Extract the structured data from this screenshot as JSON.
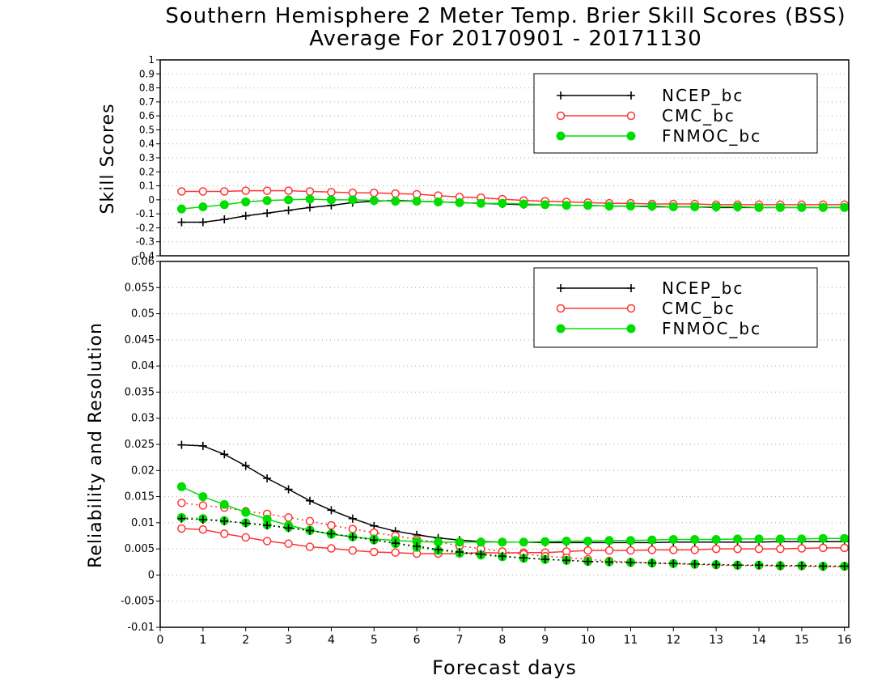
{
  "header": {
    "title_line1": "Southern Hemisphere 2 Meter Temp. Brier Skill Scores (BSS)",
    "title_line2": "Average For 20170901 - 20171130"
  },
  "chart_data": [
    {
      "type": "line",
      "title": "Southern Hemisphere 2 Meter Temp. Brier Skill Scores (BSS)",
      "subtitle": "Average For 20170901 - 20171130",
      "ylabel": "Skill Scores",
      "xlabel": "",
      "xlim": [
        0,
        16.1
      ],
      "ylim": [
        -0.4,
        1
      ],
      "yticks": [
        -0.4,
        -0.3,
        -0.2,
        -0.1,
        0,
        0.1,
        0.2,
        0.3,
        0.4,
        0.5,
        0.6,
        0.7,
        0.8,
        0.9,
        1
      ],
      "ytick_labels": [
        "-0.4",
        "-0.3",
        "-0.2",
        "-0.1",
        "0",
        "0.1",
        "0.2",
        "0.3",
        "0.4",
        "0.5",
        "0.6",
        "0.7",
        "0.8",
        "0.9",
        "1"
      ],
      "grid": true,
      "legend_position": "top-right",
      "legend": [
        "NCEP_bc",
        "CMC_bc",
        "FNMOC_bc"
      ],
      "x": [
        0.5,
        1,
        1.5,
        2,
        2.5,
        3,
        3.5,
        4,
        4.5,
        5,
        5.5,
        6,
        6.5,
        7,
        7.5,
        8,
        8.5,
        9,
        9.5,
        10,
        10.5,
        11,
        11.5,
        12,
        12.5,
        13,
        13.5,
        14,
        14.5,
        15,
        15.5,
        16
      ],
      "series": [
        {
          "name": "NCEP_bc",
          "color": "#000000",
          "marker": "plus",
          "style": "solid",
          "values": [
            -0.16,
            -0.16,
            -0.14,
            -0.115,
            -0.095,
            -0.075,
            -0.055,
            -0.04,
            -0.02,
            -0.01,
            -0.005,
            -0.01,
            -0.015,
            -0.02,
            -0.025,
            -0.03,
            -0.035,
            -0.035,
            -0.04,
            -0.04,
            -0.045,
            -0.045,
            -0.05,
            -0.05,
            -0.05,
            -0.055,
            -0.055,
            -0.055,
            -0.055,
            -0.055,
            -0.055,
            -0.055
          ]
        },
        {
          "name": "CMC_bc",
          "color": "#ff3333",
          "marker": "open-circle",
          "style": "solid",
          "values": [
            0.06,
            0.06,
            0.06,
            0.065,
            0.065,
            0.065,
            0.06,
            0.055,
            0.05,
            0.05,
            0.045,
            0.04,
            0.03,
            0.02,
            0.015,
            0.005,
            -0.005,
            -0.01,
            -0.015,
            -0.02,
            -0.025,
            -0.025,
            -0.03,
            -0.03,
            -0.03,
            -0.035,
            -0.035,
            -0.035,
            -0.035,
            -0.035,
            -0.035,
            -0.035
          ]
        },
        {
          "name": "FNMOC_bc",
          "color": "#00dd00",
          "marker": "filled-circle",
          "style": "solid",
          "values": [
            -0.065,
            -0.05,
            -0.035,
            -0.015,
            -0.005,
            0.0,
            0.005,
            0.0,
            0.0,
            -0.005,
            -0.01,
            -0.01,
            -0.015,
            -0.02,
            -0.025,
            -0.025,
            -0.03,
            -0.035,
            -0.04,
            -0.04,
            -0.045,
            -0.045,
            -0.045,
            -0.05,
            -0.05,
            -0.05,
            -0.05,
            -0.055,
            -0.055,
            -0.055,
            -0.055,
            -0.055
          ]
        }
      ]
    },
    {
      "type": "line",
      "title": "",
      "ylabel": "Reliability and Resolution",
      "xlabel": "Forecast days",
      "xlim": [
        0,
        16.1
      ],
      "ylim": [
        -0.01,
        0.06
      ],
      "xticks": [
        0,
        1,
        2,
        3,
        4,
        5,
        6,
        7,
        8,
        9,
        10,
        11,
        12,
        13,
        14,
        15,
        16
      ],
      "yticks": [
        -0.01,
        -0.005,
        0,
        0.005,
        0.01,
        0.015,
        0.02,
        0.025,
        0.03,
        0.035,
        0.04,
        0.045,
        0.05,
        0.055,
        0.06
      ],
      "ytick_labels": [
        "-0.01",
        "-0.005",
        "0",
        "0.005",
        "0.01",
        "0.015",
        "0.02",
        "0.025",
        "0.03",
        "0.035",
        "0.04",
        "0.045",
        "0.05",
        "0.055",
        "0.06"
      ],
      "grid": true,
      "legend_position": "top-right",
      "legend": [
        "NCEP_bc",
        "CMC_bc",
        "FNMOC_bc"
      ],
      "x": [
        0.5,
        1,
        1.5,
        2,
        2.5,
        3,
        3.5,
        4,
        4.5,
        5,
        5.5,
        6,
        6.5,
        7,
        7.5,
        8,
        8.5,
        9,
        9.5,
        10,
        10.5,
        11,
        11.5,
        12,
        12.5,
        13,
        13.5,
        14,
        14.5,
        15,
        15.5,
        16
      ],
      "series": [
        {
          "name": "NCEP_bc",
          "color": "#000000",
          "marker": "plus",
          "style": "solid",
          "values": [
            0.0249,
            0.0247,
            0.0231,
            0.0209,
            0.0185,
            0.0164,
            0.0142,
            0.0124,
            0.0108,
            0.0094,
            0.0084,
            0.0077,
            0.0071,
            0.0067,
            0.0064,
            0.0063,
            0.0063,
            0.0062,
            0.0062,
            0.0062,
            0.0062,
            0.0062,
            0.0062,
            0.0063,
            0.0063,
            0.0063,
            0.0063,
            0.0063,
            0.0064,
            0.0064,
            0.0064,
            0.0064
          ]
        },
        {
          "name": "CMC_bc",
          "color": "#ff3333",
          "marker": "open-circle",
          "style": "solid",
          "values": [
            0.0089,
            0.0087,
            0.0079,
            0.0072,
            0.0065,
            0.006,
            0.0054,
            0.0051,
            0.0047,
            0.0044,
            0.0043,
            0.0041,
            0.0041,
            0.0041,
            0.0043,
            0.0042,
            0.0043,
            0.0043,
            0.0045,
            0.0047,
            0.0047,
            0.0047,
            0.0048,
            0.0048,
            0.0048,
            0.005,
            0.005,
            0.005,
            0.005,
            0.0051,
            0.0052,
            0.0052
          ]
        },
        {
          "name": "CMC_bc",
          "color": "#ff3333",
          "marker": "open-circle",
          "style": "dotted",
          "values": [
            0.0138,
            0.0133,
            0.0129,
            0.0122,
            0.0117,
            0.011,
            0.0103,
            0.0095,
            0.0088,
            0.0081,
            0.0075,
            0.0068,
            0.0063,
            0.0056,
            0.005,
            0.0045,
            0.004,
            0.0036,
            0.0033,
            0.003,
            0.0027,
            0.0025,
            0.0023,
            0.0022,
            0.002,
            0.0019,
            0.0018,
            0.0018,
            0.0017,
            0.0017,
            0.0016,
            0.0016
          ]
        },
        {
          "name": "FNMOC_bc",
          "color": "#00dd00",
          "marker": "filled-circle",
          "style": "solid",
          "values": [
            0.0169,
            0.015,
            0.0135,
            0.012,
            0.0107,
            0.0095,
            0.0086,
            0.0078,
            0.0073,
            0.0069,
            0.0066,
            0.0064,
            0.0063,
            0.0063,
            0.0063,
            0.0063,
            0.0063,
            0.0064,
            0.0065,
            0.0065,
            0.0066,
            0.0066,
            0.0067,
            0.0068,
            0.0068,
            0.0068,
            0.0069,
            0.0069,
            0.0069,
            0.0069,
            0.007,
            0.007
          ]
        },
        {
          "name": "FNMOC_bc",
          "color": "#00dd00",
          "marker": "filled-circle",
          "style": "dotted",
          "values": [
            0.011,
            0.0108,
            0.0104,
            0.01,
            0.0096,
            0.0091,
            0.0085,
            0.0079,
            0.0073,
            0.0067,
            0.006,
            0.0053,
            0.0047,
            0.0042,
            0.0038,
            0.0035,
            0.0032,
            0.003,
            0.0028,
            0.0026,
            0.0025,
            0.0024,
            0.0023,
            0.0022,
            0.0021,
            0.002,
            0.0019,
            0.0019,
            0.0018,
            0.0018,
            0.0017,
            0.0017
          ]
        },
        {
          "name": "NCEP_bc",
          "color": "#000000",
          "marker": "plus",
          "style": "dotted",
          "values": [
            0.0108,
            0.0106,
            0.0103,
            0.0099,
            0.0095,
            0.009,
            0.0085,
            0.0079,
            0.0073,
            0.0067,
            0.0061,
            0.0055,
            0.0049,
            0.0044,
            0.004,
            0.0036,
            0.0033,
            0.003,
            0.0028,
            0.0026,
            0.0025,
            0.0024,
            0.0023,
            0.0022,
            0.0021,
            0.002,
            0.0019,
            0.0019,
            0.0018,
            0.0018,
            0.0017,
            0.0017
          ]
        }
      ]
    }
  ]
}
